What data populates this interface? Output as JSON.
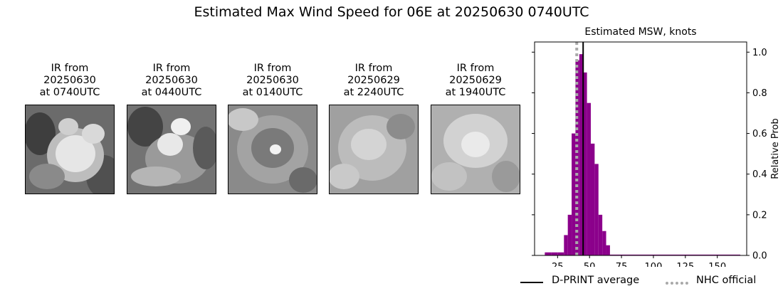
{
  "title": "Estimated Max Wind Speed for 06E at 20250630 0740UTC",
  "ir_panels": [
    {
      "line1": "IR from",
      "line2": "20250630",
      "line3": "at 0740UTC"
    },
    {
      "line1": "IR from",
      "line2": "20250630",
      "line3": "at 0440UTC"
    },
    {
      "line1": "IR from",
      "line2": "20250630",
      "line3": "at 0140UTC"
    },
    {
      "line1": "IR from",
      "line2": "20250629",
      "line3": "at 2240UTC"
    },
    {
      "line1": "IR from",
      "line2": "20250629",
      "line3": "at 1940UTC"
    }
  ],
  "chart_data": {
    "type": "bar",
    "title": "Estimated MSW, knots",
    "xlabel": "",
    "ylabel": "Relative Prob",
    "xlim": [
      7,
      173
    ],
    "ylim": [
      0,
      1.05
    ],
    "x_ticks": [
      25,
      50,
      75,
      100,
      125,
      150
    ],
    "y_ticks": [
      0.0,
      0.2,
      0.4,
      0.6,
      0.8,
      1.0
    ],
    "y_tick_labels": [
      "0.0",
      "0.2",
      "0.4",
      "0.6",
      "0.8",
      "1.0"
    ],
    "y_axis_side": "right",
    "bar_color": "#8b008b",
    "bins": [
      {
        "x0": 15,
        "x1": 20,
        "value": 0.015
      },
      {
        "x0": 20,
        "x1": 25,
        "value": 0.015
      },
      {
        "x0": 25,
        "x1": 30,
        "value": 0.015
      },
      {
        "x0": 30,
        "x1": 33,
        "value": 0.1
      },
      {
        "x0": 33,
        "x1": 36,
        "value": 0.2
      },
      {
        "x0": 36,
        "x1": 39,
        "value": 0.6
      },
      {
        "x0": 39,
        "x1": 42,
        "value": 0.96
      },
      {
        "x0": 42,
        "x1": 45,
        "value": 0.99
      },
      {
        "x0": 45,
        "x1": 48,
        "value": 0.9
      },
      {
        "x0": 48,
        "x1": 51,
        "value": 0.75
      },
      {
        "x0": 51,
        "x1": 54,
        "value": 0.55
      },
      {
        "x0": 54,
        "x1": 57,
        "value": 0.45
      },
      {
        "x0": 57,
        "x1": 60,
        "value": 0.2
      },
      {
        "x0": 60,
        "x1": 63,
        "value": 0.12
      },
      {
        "x0": 63,
        "x1": 66,
        "value": 0.05
      },
      {
        "x0": 66,
        "x1": 168,
        "value": 0.004
      }
    ],
    "dprint_average": 45,
    "nhc_official": 40,
    "dprint_color": "#000000",
    "nhc_color": "#a9a9a9",
    "legend": {
      "placement": "bottom",
      "dprint_label": "D-PRINT average",
      "nhc_label": "NHC official"
    }
  }
}
